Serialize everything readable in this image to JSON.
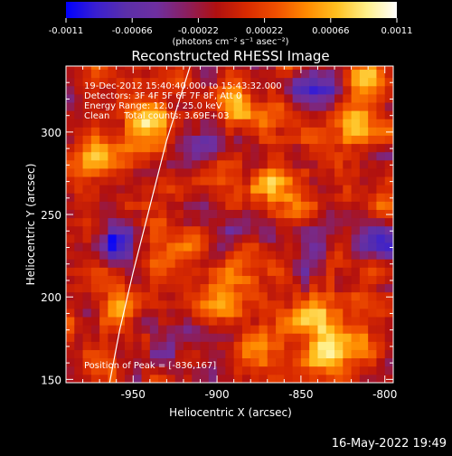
{
  "chart_data": {
    "type": "heatmap",
    "title": "Reconstructed RHESSI Image",
    "xlabel": "Heliocentric X (arcsec)",
    "ylabel": "Heliocentric Y (arcsec)",
    "xlim": [
      -990,
      -795
    ],
    "ylim": [
      148,
      340
    ],
    "x_ticks": [
      -950,
      -900,
      -850,
      -800
    ],
    "y_ticks": [
      150,
      200,
      250,
      300
    ],
    "x_tick_labels": [
      "-950",
      "-900",
      "-850",
      "-800"
    ],
    "y_tick_labels": [
      "150",
      "200",
      "250",
      "300"
    ],
    "colorbar": {
      "min": -0.0011,
      "max": 0.0011,
      "tick_values": [
        -0.0011,
        -0.00066,
        -0.00022,
        0.00022,
        0.00066,
        0.0011
      ],
      "tick_labels": [
        "-0.0011",
        "-0.00066",
        "-0.00022",
        "0.00022",
        "0.00066",
        "0.0011"
      ],
      "unit_label": "(photons cm⁻² s⁻¹ asec⁻²)",
      "colors": [
        "#0000ff",
        "#3a1fd0",
        "#5b2fa8",
        "#6e2fa0",
        "#8a1f60",
        "#b01010",
        "#d82a00",
        "#f05000",
        "#ff8a00",
        "#ffc020",
        "#fff08a",
        "#ffffff"
      ]
    },
    "annotations": [
      "19-Dec-2012 15:40:40.000 to 15:43:32.000",
      "Detectors: 3F 4F 5F 6F 7F 8F, Att 0",
      "Energy Range: 12.0 - 25.0 keV",
      "Clean     Total counts: 3.69E+03"
    ],
    "peak_label": "Position of Peak = [-836,167]",
    "peak": [
      -836,
      167
    ],
    "limb_curve": [
      [
        -964,
        148
      ],
      [
        -958,
        180
      ],
      [
        -950,
        215
      ],
      [
        -940,
        255
      ],
      [
        -930,
        295
      ],
      [
        -916,
        340
      ]
    ],
    "intensity_grid": {
      "x_start": -990,
      "x_step": 5,
      "nx": 39,
      "y_start": 148,
      "y_step": 5,
      "ny": 39,
      "seed": 20121219,
      "hotspots": [
        {
          "x": -836,
          "y": 167,
          "a": 0.0011
        },
        {
          "x": -945,
          "y": 300,
          "a": 0.0008
        },
        {
          "x": -893,
          "y": 315,
          "a": 0.0007
        },
        {
          "x": -870,
          "y": 262,
          "a": 0.0006
        },
        {
          "x": -820,
          "y": 300,
          "a": 0.0006
        },
        {
          "x": -815,
          "y": 330,
          "a": 0.0007
        },
        {
          "x": -900,
          "y": 198,
          "a": 0.0006
        },
        {
          "x": -960,
          "y": 190,
          "a": 0.0006
        },
        {
          "x": -975,
          "y": 280,
          "a": 0.0005
        },
        {
          "x": -848,
          "y": 185,
          "a": 0.0005
        },
        {
          "x": -878,
          "y": 165,
          "a": 0.0005
        },
        {
          "x": -928,
          "y": 225,
          "a": 0.0004
        }
      ],
      "coldspots": [
        {
          "x": -962,
          "y": 232,
          "a": -0.0008
        },
        {
          "x": -843,
          "y": 323,
          "a": -0.0007
        },
        {
          "x": -905,
          "y": 290,
          "a": -0.0006
        },
        {
          "x": -805,
          "y": 232,
          "a": -0.0007
        },
        {
          "x": -883,
          "y": 240,
          "a": -0.0005
        },
        {
          "x": -930,
          "y": 160,
          "a": -0.0005
        },
        {
          "x": -845,
          "y": 225,
          "a": -0.0005
        }
      ]
    }
  },
  "footer": {
    "timestamp": "16-May-2022 19:49"
  }
}
